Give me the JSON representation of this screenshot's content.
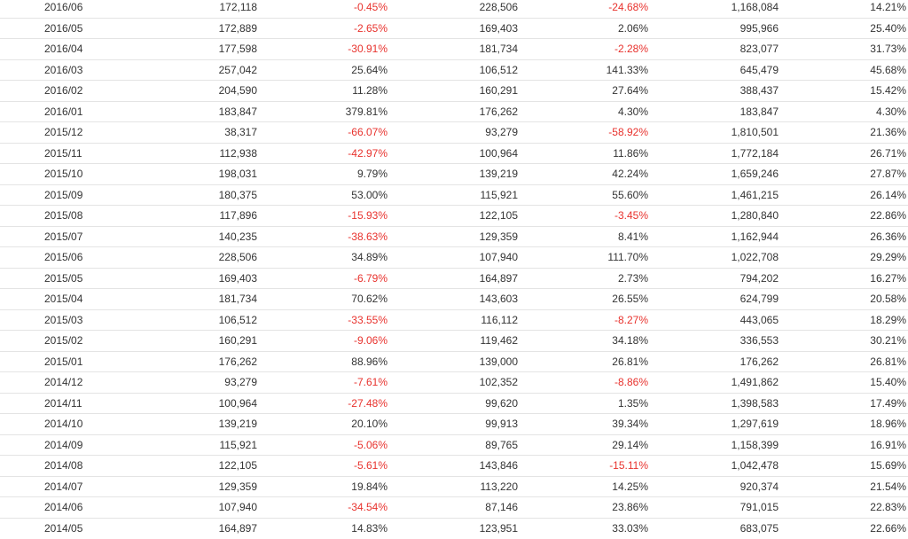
{
  "colors": {
    "text": "#333333",
    "negative": "#e8322d",
    "divider": "#e4e4e4"
  },
  "rows": [
    {
      "date": "2016/06",
      "v1": "172,118",
      "p1": "-0.45%",
      "v2": "228,506",
      "p2": "-24.68%",
      "v3": "1,168,084",
      "p3": "14.21%"
    },
    {
      "date": "2016/05",
      "v1": "172,889",
      "p1": "-2.65%",
      "v2": "169,403",
      "p2": "2.06%",
      "v3": "995,966",
      "p3": "25.40%"
    },
    {
      "date": "2016/04",
      "v1": "177,598",
      "p1": "-30.91%",
      "v2": "181,734",
      "p2": "-2.28%",
      "v3": "823,077",
      "p3": "31.73%"
    },
    {
      "date": "2016/03",
      "v1": "257,042",
      "p1": "25.64%",
      "v2": "106,512",
      "p2": "141.33%",
      "v3": "645,479",
      "p3": "45.68%"
    },
    {
      "date": "2016/02",
      "v1": "204,590",
      "p1": "11.28%",
      "v2": "160,291",
      "p2": "27.64%",
      "v3": "388,437",
      "p3": "15.42%"
    },
    {
      "date": "2016/01",
      "v1": "183,847",
      "p1": "379.81%",
      "v2": "176,262",
      "p2": "4.30%",
      "v3": "183,847",
      "p3": "4.30%"
    },
    {
      "date": "2015/12",
      "v1": "38,317",
      "p1": "-66.07%",
      "v2": "93,279",
      "p2": "-58.92%",
      "v3": "1,810,501",
      "p3": "21.36%"
    },
    {
      "date": "2015/11",
      "v1": "112,938",
      "p1": "-42.97%",
      "v2": "100,964",
      "p2": "11.86%",
      "v3": "1,772,184",
      "p3": "26.71%"
    },
    {
      "date": "2015/10",
      "v1": "198,031",
      "p1": "9.79%",
      "v2": "139,219",
      "p2": "42.24%",
      "v3": "1,659,246",
      "p3": "27.87%"
    },
    {
      "date": "2015/09",
      "v1": "180,375",
      "p1": "53.00%",
      "v2": "115,921",
      "p2": "55.60%",
      "v3": "1,461,215",
      "p3": "26.14%"
    },
    {
      "date": "2015/08",
      "v1": "117,896",
      "p1": "-15.93%",
      "v2": "122,105",
      "p2": "-3.45%",
      "v3": "1,280,840",
      "p3": "22.86%"
    },
    {
      "date": "2015/07",
      "v1": "140,235",
      "p1": "-38.63%",
      "v2": "129,359",
      "p2": "8.41%",
      "v3": "1,162,944",
      "p3": "26.36%"
    },
    {
      "date": "2015/06",
      "v1": "228,506",
      "p1": "34.89%",
      "v2": "107,940",
      "p2": "111.70%",
      "v3": "1,022,708",
      "p3": "29.29%"
    },
    {
      "date": "2015/05",
      "v1": "169,403",
      "p1": "-6.79%",
      "v2": "164,897",
      "p2": "2.73%",
      "v3": "794,202",
      "p3": "16.27%"
    },
    {
      "date": "2015/04",
      "v1": "181,734",
      "p1": "70.62%",
      "v2": "143,603",
      "p2": "26.55%",
      "v3": "624,799",
      "p3": "20.58%"
    },
    {
      "date": "2015/03",
      "v1": "106,512",
      "p1": "-33.55%",
      "v2": "116,112",
      "p2": "-8.27%",
      "v3": "443,065",
      "p3": "18.29%"
    },
    {
      "date": "2015/02",
      "v1": "160,291",
      "p1": "-9.06%",
      "v2": "119,462",
      "p2": "34.18%",
      "v3": "336,553",
      "p3": "30.21%"
    },
    {
      "date": "2015/01",
      "v1": "176,262",
      "p1": "88.96%",
      "v2": "139,000",
      "p2": "26.81%",
      "v3": "176,262",
      "p3": "26.81%"
    },
    {
      "date": "2014/12",
      "v1": "93,279",
      "p1": "-7.61%",
      "v2": "102,352",
      "p2": "-8.86%",
      "v3": "1,491,862",
      "p3": "15.40%"
    },
    {
      "date": "2014/11",
      "v1": "100,964",
      "p1": "-27.48%",
      "v2": "99,620",
      "p2": "1.35%",
      "v3": "1,398,583",
      "p3": "17.49%"
    },
    {
      "date": "2014/10",
      "v1": "139,219",
      "p1": "20.10%",
      "v2": "99,913",
      "p2": "39.34%",
      "v3": "1,297,619",
      "p3": "18.96%"
    },
    {
      "date": "2014/09",
      "v1": "115,921",
      "p1": "-5.06%",
      "v2": "89,765",
      "p2": "29.14%",
      "v3": "1,158,399",
      "p3": "16.91%"
    },
    {
      "date": "2014/08",
      "v1": "122,105",
      "p1": "-5.61%",
      "v2": "143,846",
      "p2": "-15.11%",
      "v3": "1,042,478",
      "p3": "15.69%"
    },
    {
      "date": "2014/07",
      "v1": "129,359",
      "p1": "19.84%",
      "v2": "113,220",
      "p2": "14.25%",
      "v3": "920,374",
      "p3": "21.54%"
    },
    {
      "date": "2014/06",
      "v1": "107,940",
      "p1": "-34.54%",
      "v2": "87,146",
      "p2": "23.86%",
      "v3": "791,015",
      "p3": "22.83%"
    },
    {
      "date": "2014/05",
      "v1": "164,897",
      "p1": "14.83%",
      "v2": "123,951",
      "p2": "33.03%",
      "v3": "683,075",
      "p3": "22.66%"
    }
  ]
}
